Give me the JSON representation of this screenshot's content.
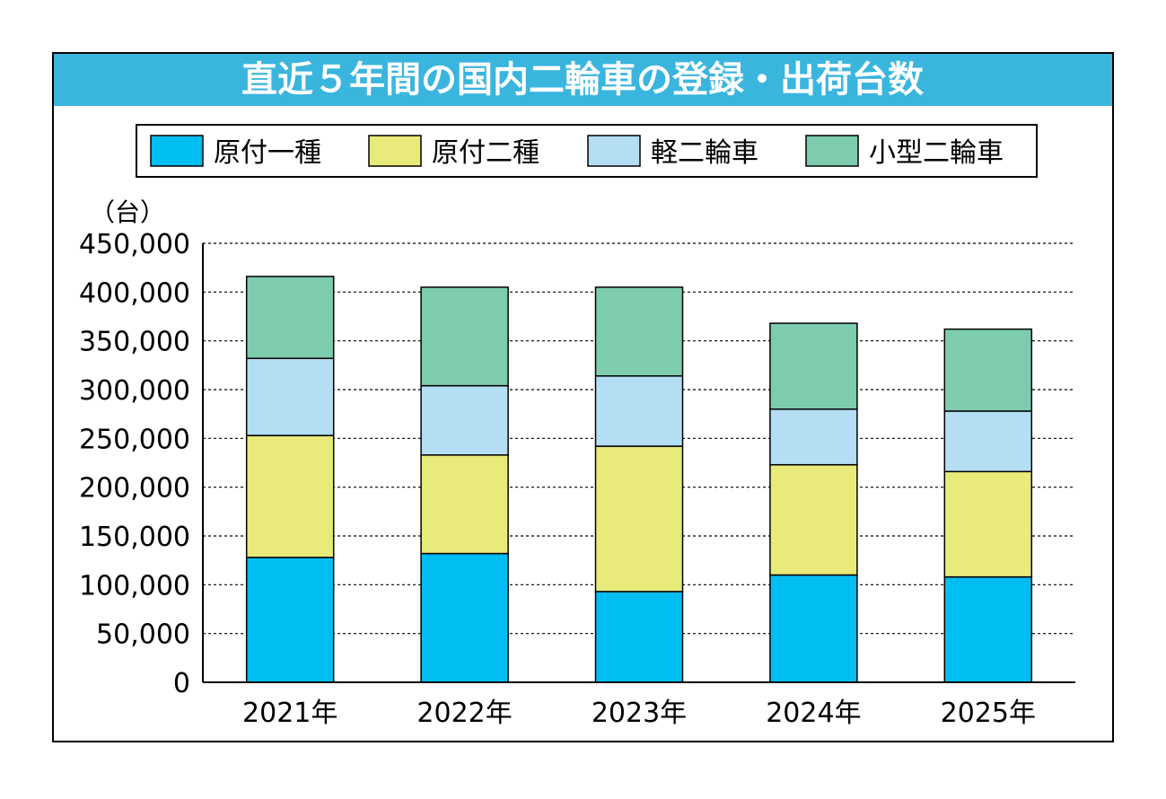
{
  "chart_data": {
    "type": "bar",
    "stacked": true,
    "title": "直近５年間の国内二輪車の登録・出荷台数",
    "ylabel": "（台）",
    "xlabel": "",
    "ylim": [
      0,
      450000
    ],
    "yticks": [
      0,
      50000,
      100000,
      150000,
      200000,
      250000,
      300000,
      350000,
      400000,
      450000
    ],
    "ytick_labels": [
      "0",
      "50,000",
      "100,000",
      "150,000",
      "200,000",
      "250,000",
      "300,000",
      "350,000",
      "400,000",
      "450,000"
    ],
    "grid": "horizontal dotted",
    "legend_placement": "top",
    "categories": [
      "2021年",
      "2022年",
      "2023年",
      "2024年",
      "2025年"
    ],
    "series": [
      {
        "name": "原付一種",
        "color": "#00bdf2",
        "values": [
          128000,
          132000,
          93000,
          110000,
          108000
        ]
      },
      {
        "name": "原付二種",
        "color": "#e8ea7a",
        "values": [
          125000,
          101000,
          149000,
          113000,
          108000
        ]
      },
      {
        "name": "軽二輪車",
        "color": "#b3def3",
        "values": [
          79000,
          71000,
          72000,
          57000,
          62000
        ]
      },
      {
        "name": "小型二輪車",
        "color": "#7dccad",
        "values": [
          84000,
          101000,
          91000,
          88000,
          84000
        ]
      }
    ]
  },
  "colors": {
    "title_bar": "#3ab5de",
    "title_text": "#ffffff"
  }
}
